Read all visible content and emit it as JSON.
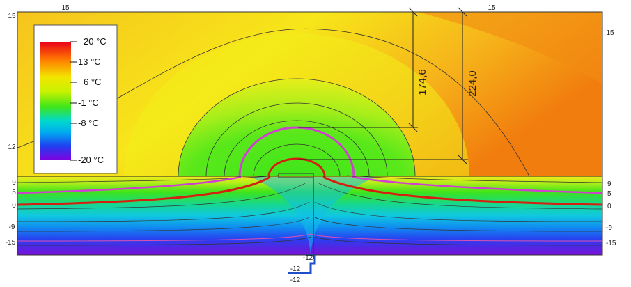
{
  "legend": {
    "items": [
      "20 °C",
      "13 °C",
      "6 °C",
      "-1 °C",
      "-8 °C",
      "-20 °C"
    ],
    "gradient_colors": [
      "#e8001a",
      "#ff7a00",
      "#f2e600",
      "#c8f200",
      "#3ee61a",
      "#00d8d0",
      "#00a8f0",
      "#2040f0",
      "#8000e0"
    ]
  },
  "dimensions": {
    "inner": "174,6",
    "outer": "224,0"
  },
  "isotherm_labels": {
    "top_left": "15",
    "top_right": "15",
    "right_upper": "15",
    "left_edge_top": "15",
    "left_edge_mid": "12",
    "left": [
      "9",
      "5",
      "0",
      "-9",
      "-15"
    ],
    "right": [
      "9",
      "5",
      "0",
      "-9",
      "-15"
    ],
    "bottom": [
      "-12",
      "-12",
      "-12"
    ]
  },
  "colors": {
    "air_hot": "#f28a10",
    "air_warm": "#f5b21a",
    "air_yellow": "#f7ea1a",
    "iso_magenta": "#d040d0",
    "iso_red": "#d42010",
    "pipe_blue": "#1f4fc8"
  }
}
